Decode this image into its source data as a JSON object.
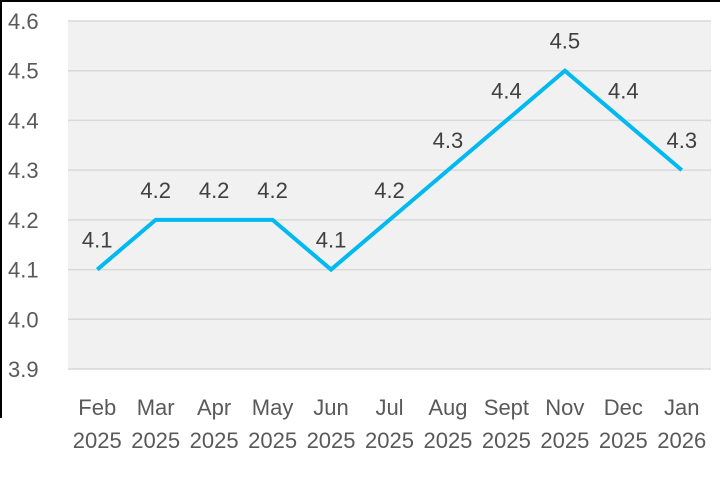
{
  "frame": {
    "border_color": "#000000"
  },
  "chart_data": {
    "type": "line",
    "title": "",
    "legend": "none",
    "grid": true,
    "categories": [
      "Feb 2025",
      "Mar 2025",
      "Apr 2025",
      "May 2025",
      "Jun 2025",
      "Jul 2025",
      "Aug 2025",
      "Sept 2025",
      "Nov 2025",
      "Dec 2025",
      "Jan 2026"
    ],
    "x_tick_months": [
      "Feb",
      "Mar",
      "Apr",
      "May",
      "Jun",
      "Jul",
      "Aug",
      "Sept",
      "Nov",
      "Dec",
      "Jan"
    ],
    "x_tick_years": [
      "2025",
      "2025",
      "2025",
      "2025",
      "2025",
      "2025",
      "2025",
      "2025",
      "2025",
      "2025",
      "2026"
    ],
    "values": [
      4.1,
      4.2,
      4.2,
      4.2,
      4.1,
      4.2,
      4.3,
      4.4,
      4.5,
      4.4,
      4.3
    ],
    "data_labels": [
      "4.1",
      "4.2",
      "4.2",
      "4.2",
      "4.1",
      "4.2",
      "4.3",
      "4.4",
      "4.5",
      "4.4",
      "4.3"
    ],
    "ylim": [
      3.9,
      4.6
    ],
    "y_ticks": [
      "4.6",
      "4.5",
      "4.4",
      "4.3",
      "4.2",
      "4.1",
      "4.0",
      "3.9"
    ],
    "xlabel": "",
    "ylabel": "",
    "colors": {
      "line": "#00B9F0",
      "plot_background": "#F1F1F1",
      "gridline": "#D9D9D9",
      "axis_text": "#595959",
      "data_label_text": "#404040",
      "page_background": "#FFFFFF"
    }
  }
}
